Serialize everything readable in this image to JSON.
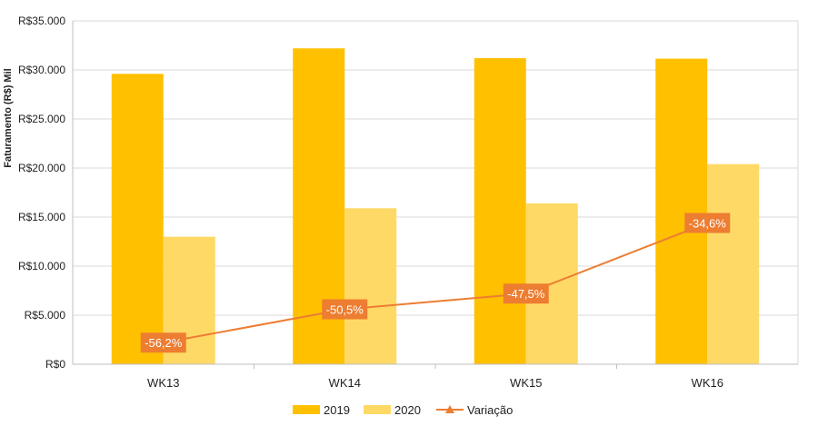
{
  "chart_data": {
    "type": "bar",
    "categories": [
      "WK13",
      "WK14",
      "WK15",
      "WK16"
    ],
    "series": [
      {
        "name": "2019",
        "type": "bar",
        "color": "#FFC000",
        "values": [
          29600,
          32200,
          31200,
          31150
        ]
      },
      {
        "name": "2020",
        "type": "bar",
        "color": "#FFD966",
        "values": [
          13000,
          15900,
          16400,
          20400
        ]
      }
    ],
    "line_series": {
      "name": "Variação",
      "type": "line",
      "color": "#ED7D31",
      "labels": [
        "-56,2%",
        "-50,5%",
        "-47,5%",
        "-34,6%"
      ],
      "plot_values": [
        2200,
        5600,
        7200,
        14400
      ]
    },
    "ylabel": "Faturamento (R$) Mil",
    "xlabel": "",
    "ylim": [
      0,
      35000
    ],
    "yticks": [
      0,
      5000,
      10000,
      15000,
      20000,
      25000,
      30000,
      35000
    ],
    "ytick_labels": [
      "R$0",
      "R$5.000",
      "R$10.000",
      "R$15.000",
      "R$20.000",
      "R$25.000",
      "R$30.000",
      "R$35.000"
    ],
    "grid": true,
    "legend_position": "bottom"
  }
}
